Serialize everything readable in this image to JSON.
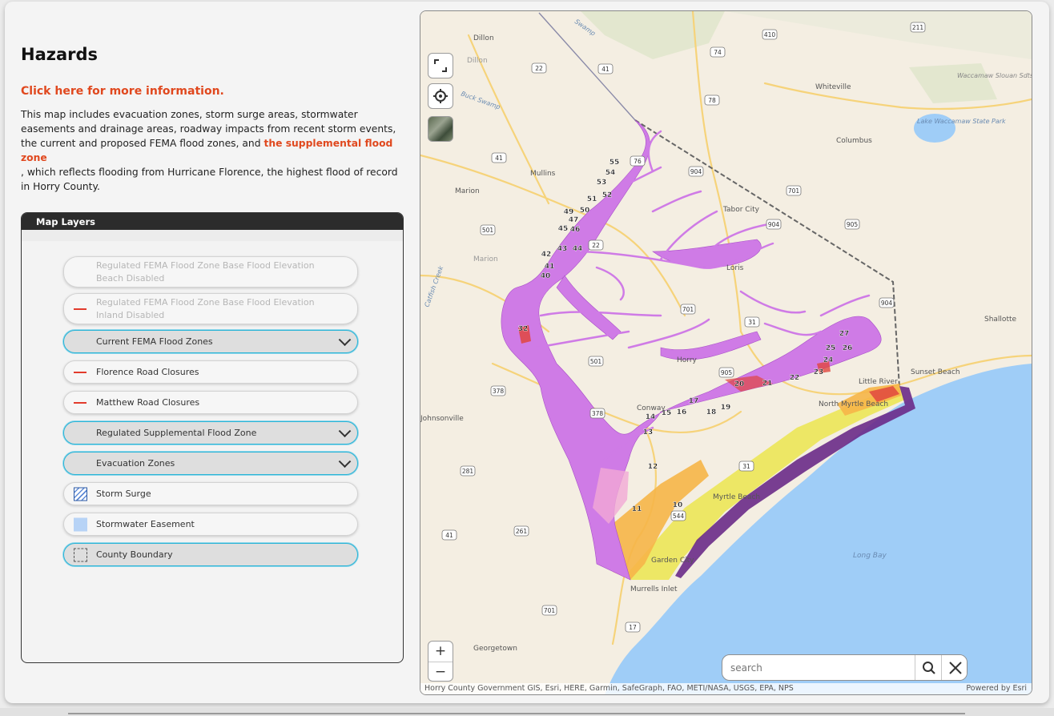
{
  "panel": {
    "title": "Hazards",
    "info_link": "Click here for more information.",
    "description_part1": "This map includes evacuation zones, storm surge areas, stormwater easements and drainage areas, roadway impacts from recent storm events, the current and proposed FEMA flood zones, and",
    "description_link": "the supplemental flood zone",
    "description_part2": ", which reflects flooding from Hurricane Florence, the highest flood of record in Horry County."
  },
  "layers_panel": {
    "header": "Map Layers",
    "items": [
      {
        "label_line1": "Regulated FEMA Flood Zone Base Flood Elevation",
        "label_line2": "Beach Disabled",
        "swatch": "none",
        "state": "disabled"
      },
      {
        "label_line1": "Regulated FEMA Flood Zone Base Flood Elevation",
        "label_line2": "Inland Disabled",
        "swatch": "red-line",
        "state": "disabled"
      },
      {
        "label_line1": "Current FEMA Flood Zones",
        "swatch": "none",
        "state": "active",
        "expandable": true
      },
      {
        "label_line1": "Florence Road Closures",
        "swatch": "red-line",
        "state": "normal"
      },
      {
        "label_line1": "Matthew Road Closures",
        "swatch": "red-line",
        "state": "normal"
      },
      {
        "label_line1": "Regulated Supplemental Flood Zone",
        "swatch": "none",
        "state": "active",
        "expandable": true
      },
      {
        "label_line1": "Evacuation Zones",
        "swatch": "none",
        "state": "active",
        "expandable": true
      },
      {
        "label_line1": "Storm Surge",
        "swatch": "hatch",
        "state": "normal"
      },
      {
        "label_line1": "Stormwater Easement",
        "swatch": "light-blue-fill",
        "state": "normal"
      },
      {
        "label_line1": "County Boundary",
        "swatch": "dashed-square",
        "state": "active"
      }
    ]
  },
  "map": {
    "controls": {
      "fullscreen": "fullscreen-icon",
      "locate": "locate-icon",
      "basemap": "basemap-toggle",
      "zoom_in": "+",
      "zoom_out": "−"
    },
    "search": {
      "placeholder": "search",
      "search_icon": "search-icon",
      "clear_icon": "close-icon"
    },
    "attribution": "Horry County Government GIS, Esri, HERE, Garmin, SafeGraph, FAO, METI/NASA, USGS, EPA, NPS",
    "powered_by": "Powered by Esri",
    "place_labels": [
      "Dillon",
      "Dillon",
      "Whiteville",
      "Waccamaw Slouan Sdtsa",
      "Buck Swamp",
      "Lake Waccamaw State Park",
      "Columbus",
      "Mullins",
      "Marion",
      "Tabor City",
      "Marion",
      "Loris",
      "Shallotte",
      "Little River",
      "Sunset Beach",
      "North Myrtle Beach",
      "Conway",
      "Horry",
      "Johnsonville",
      "Myrtle Beach",
      "Garden City",
      "Murrells Inlet",
      "Long Bay",
      "Georgetown",
      "Catfish Creek",
      "Swamp"
    ],
    "route_shields": [
      "410",
      "211",
      "74",
      "22",
      "41",
      "76",
      "78",
      "904",
      "701",
      "41",
      "501",
      "22",
      "905",
      "904",
      "701",
      "31",
      "904",
      "905",
      "501",
      "378",
      "378",
      "281",
      "41",
      "261",
      "544",
      "31",
      "17",
      "701"
    ],
    "zone_numbers": [
      "55",
      "54",
      "53",
      "52",
      "51",
      "50",
      "49",
      "47",
      "46",
      "45",
      "44",
      "43",
      "42",
      "41",
      "40",
      "32",
      "27",
      "26",
      "25",
      "24",
      "23",
      "22",
      "21",
      "20",
      "19",
      "18",
      "17",
      "16",
      "15",
      "14",
      "13",
      "12",
      "11",
      "10"
    ],
    "colors": {
      "flood_zone": "#cf7be6",
      "supplemental": "#f6b548",
      "evac": "#ece65e",
      "surge": "#e0463e",
      "ocean": "#9fcdf7",
      "accent": "#e0481e",
      "active_border": "#2bb4d6"
    }
  }
}
